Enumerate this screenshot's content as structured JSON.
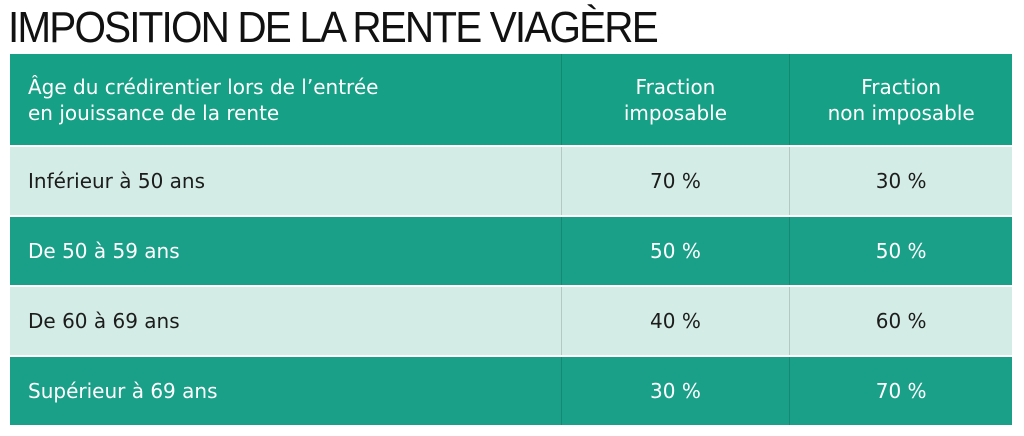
{
  "header": {
    "title": "IMPOSITION DE LA RENTE VIAGÈRE"
  },
  "table": {
    "columns": [
      [
        "Âge du crédirentier lors de l’entrée",
        "en jouissance de la rente"
      ],
      [
        "Fraction",
        "imposable"
      ],
      [
        "Fraction",
        "non imposable"
      ]
    ],
    "rows": [
      [
        "Inférieur à 50 ans",
        "70 %",
        "30 %"
      ],
      [
        "De 50 à 59 ans",
        "50 %",
        "50 %"
      ],
      [
        "De 60 à 69 ans",
        "40 %",
        "60 %"
      ],
      [
        "Supérieur à 69 ans",
        "30 %",
        "70 %"
      ]
    ]
  }
}
